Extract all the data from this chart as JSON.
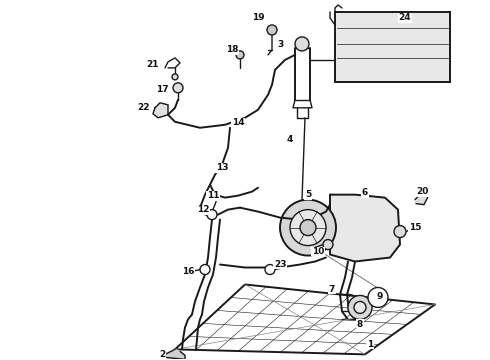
{
  "bg_color": "#ffffff",
  "line_color": "#1a1a1a",
  "label_color": "#111111",
  "label_fontsize": 6.5,
  "fig_width": 4.9,
  "fig_height": 3.6,
  "dpi": 100
}
